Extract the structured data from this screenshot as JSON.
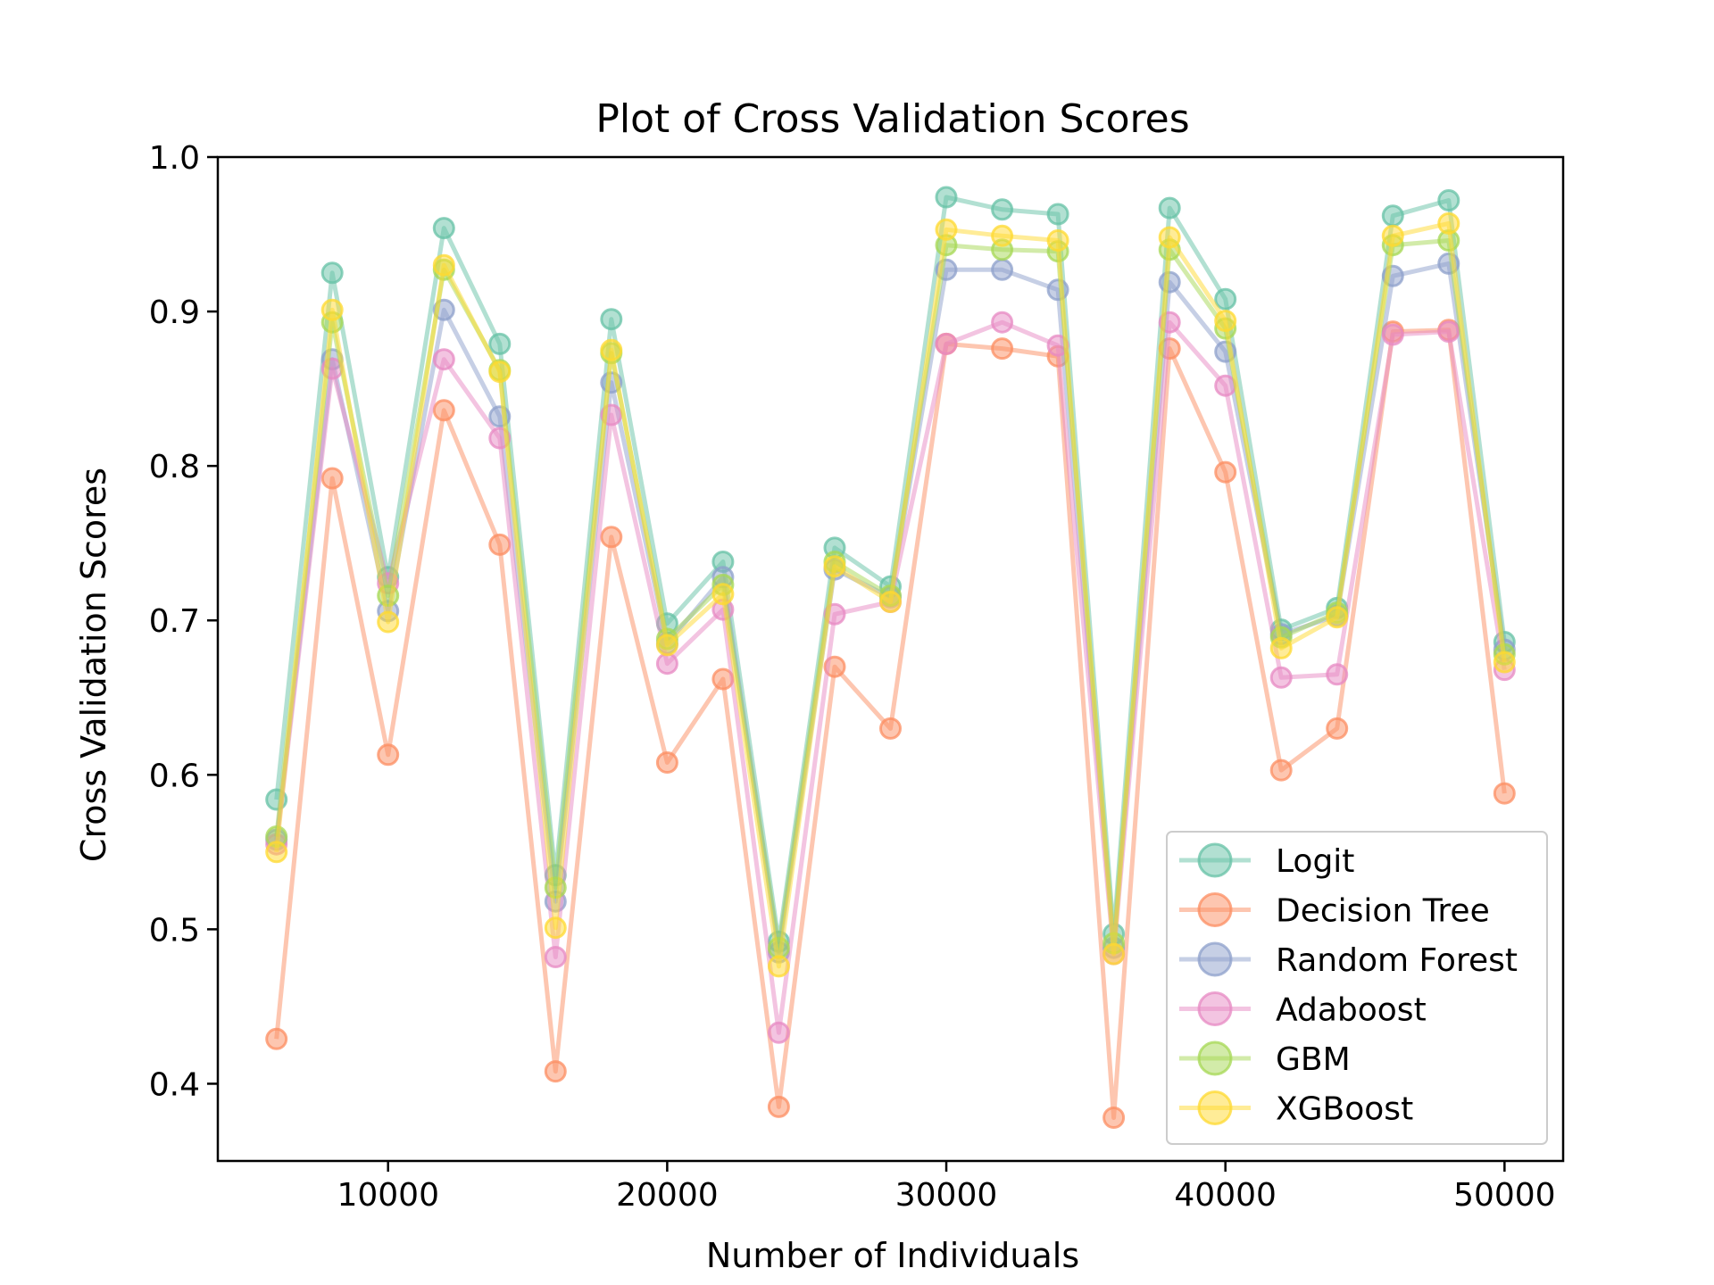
{
  "chart_data": {
    "type": "line",
    "title": "Plot of Cross Validation Scores",
    "xlabel": "Number of Individuals",
    "ylabel": "Cross Validation Scores",
    "xlim": [
      3900,
      52100
    ],
    "ylim": [
      0.35,
      1.0
    ],
    "xticks": [
      10000,
      20000,
      30000,
      40000,
      50000
    ],
    "yticks": [
      0.4,
      0.5,
      0.6,
      0.7,
      0.8,
      0.9,
      1.0
    ],
    "ytick_labels": [
      "0.4",
      "0.5",
      "0.6",
      "0.7",
      "0.8",
      "0.9",
      "1.0"
    ],
    "grid": false,
    "legend_position": "lower-right",
    "x": [
      6000,
      8000,
      10000,
      12000,
      14000,
      16000,
      18000,
      20000,
      22000,
      24000,
      26000,
      28000,
      30000,
      32000,
      34000,
      36000,
      38000,
      40000,
      42000,
      44000,
      46000,
      48000,
      50000
    ],
    "series": [
      {
        "name": "Logit",
        "color": "#66c2a5",
        "values": [
          0.584,
          0.925,
          0.728,
          0.954,
          0.879,
          0.535,
          0.895,
          0.698,
          0.738,
          0.492,
          0.747,
          0.722,
          0.974,
          0.966,
          0.963,
          0.497,
          0.967,
          0.908,
          0.694,
          0.708,
          0.962,
          0.972,
          0.686
        ]
      },
      {
        "name": "Decision Tree",
        "color": "#fc8d62",
        "values": [
          0.429,
          0.792,
          0.613,
          0.836,
          0.749,
          0.408,
          0.754,
          0.608,
          0.662,
          0.385,
          0.67,
          0.63,
          0.879,
          0.876,
          0.871,
          0.378,
          0.876,
          0.796,
          0.603,
          0.63,
          0.887,
          0.888,
          0.588
        ]
      },
      {
        "name": "Random Forest",
        "color": "#8da0cb",
        "values": [
          0.558,
          0.869,
          0.706,
          0.901,
          0.832,
          0.518,
          0.854,
          0.685,
          0.728,
          0.485,
          0.733,
          0.715,
          0.927,
          0.927,
          0.914,
          0.488,
          0.919,
          0.874,
          0.691,
          0.703,
          0.923,
          0.931,
          0.681
        ]
      },
      {
        "name": "Adaboost",
        "color": "#e78ac3",
        "values": [
          0.555,
          0.863,
          0.724,
          0.869,
          0.818,
          0.482,
          0.833,
          0.672,
          0.707,
          0.433,
          0.704,
          0.712,
          0.879,
          0.893,
          0.878,
          0.484,
          0.893,
          0.852,
          0.663,
          0.665,
          0.885,
          0.887,
          0.668
        ]
      },
      {
        "name": "GBM",
        "color": "#a6d854",
        "values": [
          0.56,
          0.893,
          0.716,
          0.927,
          0.862,
          0.527,
          0.873,
          0.688,
          0.723,
          0.488,
          0.738,
          0.716,
          0.943,
          0.94,
          0.939,
          0.491,
          0.94,
          0.889,
          0.689,
          0.705,
          0.943,
          0.946,
          0.678
        ]
      },
      {
        "name": "XGBoost",
        "color": "#ffd92f",
        "values": [
          0.55,
          0.901,
          0.699,
          0.93,
          0.861,
          0.501,
          0.875,
          0.684,
          0.717,
          0.476,
          0.735,
          0.712,
          0.953,
          0.949,
          0.946,
          0.484,
          0.948,
          0.894,
          0.682,
          0.702,
          0.949,
          0.957,
          0.673
        ]
      }
    ]
  }
}
